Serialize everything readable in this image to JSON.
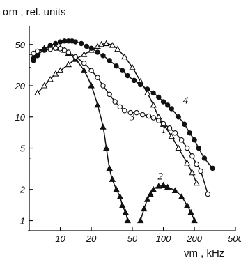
{
  "chart_data": {
    "type": "line",
    "title": "",
    "ylabel": "αm , rel. units",
    "xlabel": "νm , kHz",
    "xscale": "log",
    "yscale": "log",
    "xlim": [
      5,
      500
    ],
    "ylim": [
      0.85,
      60
    ],
    "grid": false,
    "x_ticks": [
      10,
      20,
      50,
      100,
      200,
      500
    ],
    "x_tick_labels": [
      "10",
      "20",
      "50",
      "100",
      "200",
      "500"
    ],
    "y_ticks": [
      1,
      2,
      5,
      10,
      20,
      50
    ],
    "y_tick_labels": [
      "1",
      "2",
      "5",
      "10",
      "20",
      "50"
    ],
    "series": [
      {
        "name": "1",
        "marker": "triangle-open",
        "x": [
          6,
          7,
          8,
          9,
          10,
          12,
          14,
          17,
          20,
          23,
          25,
          28,
          32,
          36,
          42,
          50,
          60,
          70,
          80,
          90,
          100,
          120,
          140,
          170,
          190,
          210
        ],
        "y": [
          17,
          20,
          23,
          26,
          28,
          32,
          36,
          40,
          44,
          48,
          50,
          51,
          49,
          45,
          38,
          30,
          22,
          17,
          13,
          10,
          8.5,
          6.5,
          5,
          3.6,
          2.9,
          2.3
        ]
      },
      {
        "name": "2",
        "marker": "triangle-filled",
        "x": [
          5.5,
          6,
          7,
          8,
          9,
          10,
          11,
          12,
          14,
          17,
          20,
          23,
          26,
          28,
          30,
          32,
          35,
          38,
          40,
          43,
          45,
          60,
          65,
          70,
          75,
          80,
          90,
          100,
          110,
          130,
          150,
          170,
          185,
          200
        ],
        "y": [
          38,
          42,
          46,
          47,
          47,
          46,
          44,
          41,
          36,
          28,
          20,
          13,
          8,
          5,
          3.2,
          2.5,
          2,
          1.7,
          1.4,
          1.2,
          1,
          1,
          1.3,
          1.6,
          1.8,
          2,
          2.15,
          2.2,
          2.1,
          1.95,
          1.7,
          1.4,
          1.2,
          1
        ]
      },
      {
        "name": "3",
        "marker": "circle-open",
        "x": [
          5.5,
          6,
          7,
          8,
          9,
          10,
          11,
          12,
          14,
          17,
          20,
          23,
          26,
          30,
          34,
          38,
          42,
          48,
          55,
          63,
          72,
          80,
          90,
          100,
          115,
          130,
          150,
          170,
          190,
          210,
          230,
          270
        ],
        "y": [
          41,
          43,
          44,
          45,
          46,
          45.5,
          44,
          42,
          38,
          33,
          28,
          24,
          20,
          16.5,
          14,
          12.5,
          11.5,
          11,
          11,
          10.5,
          10.2,
          9.8,
          9.2,
          8.6,
          7.8,
          7,
          6,
          5,
          4.2,
          3.5,
          3,
          1.8
        ]
      },
      {
        "name": "4",
        "marker": "circle-filled",
        "x": [
          5.5,
          6,
          7,
          8,
          9,
          10,
          11,
          12,
          13,
          14,
          16,
          18,
          20,
          23,
          26,
          30,
          35,
          40,
          45,
          52,
          60,
          70,
          80,
          90,
          100,
          110,
          120,
          140,
          160,
          180,
          200,
          220,
          250,
          300
        ],
        "y": [
          35,
          39,
          45,
          49,
          51,
          53,
          54,
          54,
          54,
          53,
          51,
          48,
          46,
          42,
          39,
          35,
          31,
          28,
          25,
          22.5,
          20.5,
          18.5,
          17,
          15.5,
          14,
          13,
          12,
          10,
          8.5,
          7,
          6,
          5,
          4,
          3.2
        ]
      }
    ],
    "annotations": [
      {
        "text": "1",
        "x": 95,
        "y": 7
      },
      {
        "text": "2",
        "x": 88,
        "y": 2.5
      },
      {
        "text": "3",
        "x": 47,
        "y": 9.3
      },
      {
        "text": "4",
        "x": 155,
        "y": 13.5
      }
    ]
  }
}
